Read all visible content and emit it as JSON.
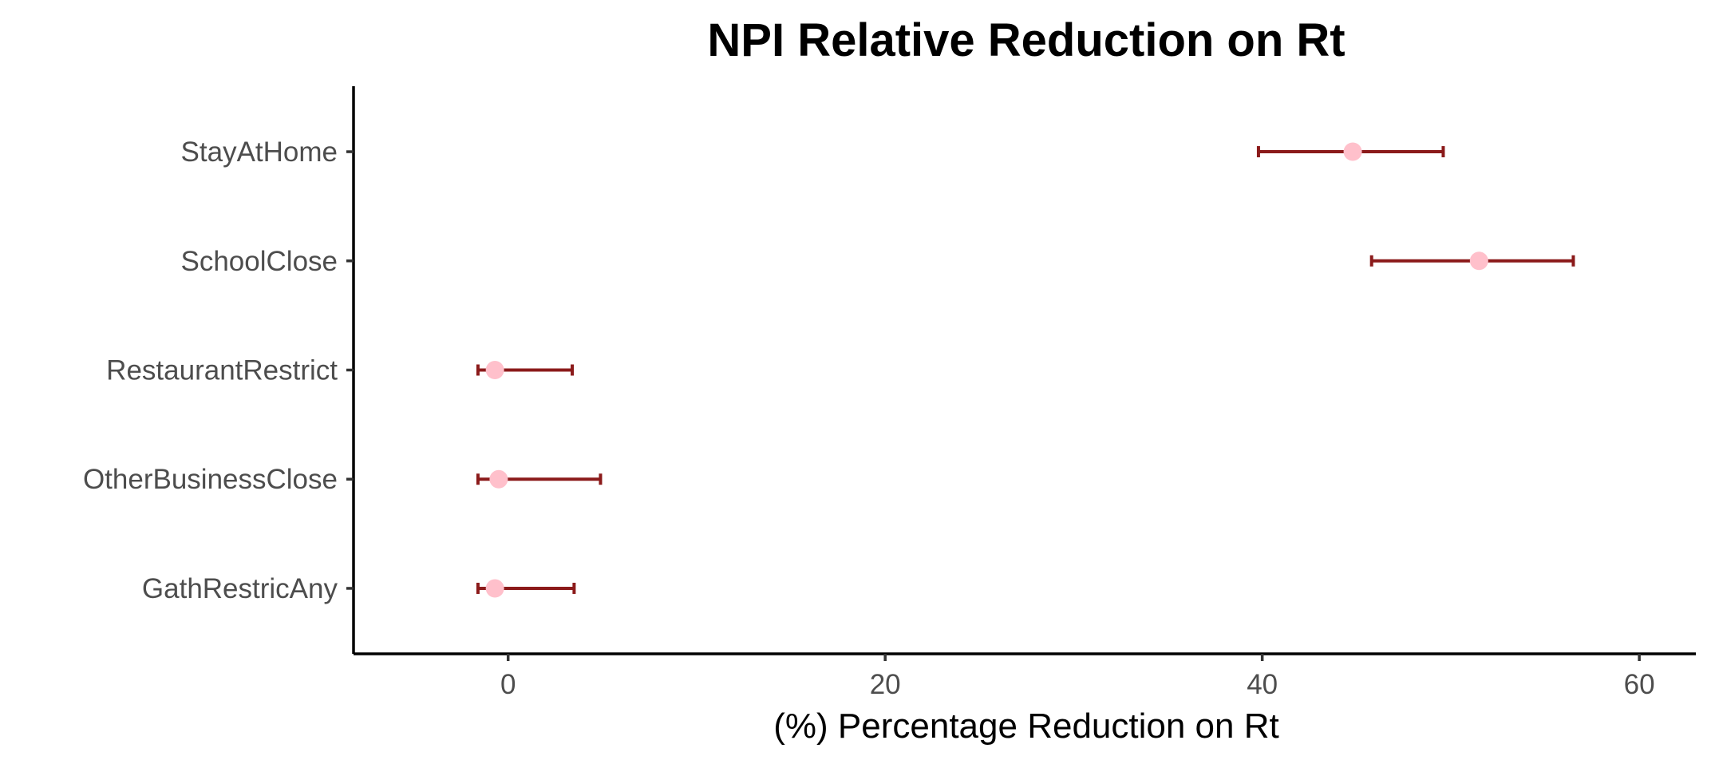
{
  "chart_data": {
    "type": "errorbar",
    "title": "NPI Relative Reduction on Rt",
    "xlabel": "(%) Percentage Reduction on Rt",
    "ylabel": "",
    "xlim": [
      -8.2,
      63
    ],
    "x_ticks": [
      0,
      20,
      40,
      60
    ],
    "categories": [
      "StayAtHome",
      "SchoolClose",
      "RestaurantRestrict",
      "OtherBusinessClose",
      "GathRestricAny"
    ],
    "estimates": [
      44.8,
      51.5,
      -0.7,
      -0.5,
      -0.7
    ],
    "lower": [
      39.8,
      45.8,
      -1.6,
      -1.6,
      -1.6
    ],
    "upper": [
      49.6,
      56.5,
      3.4,
      4.9,
      3.5
    ],
    "legend": "none",
    "grid": false,
    "colors": {
      "point": "#ffc0cb",
      "errorbar": "#8b1a1a",
      "axis": "#000000"
    }
  }
}
